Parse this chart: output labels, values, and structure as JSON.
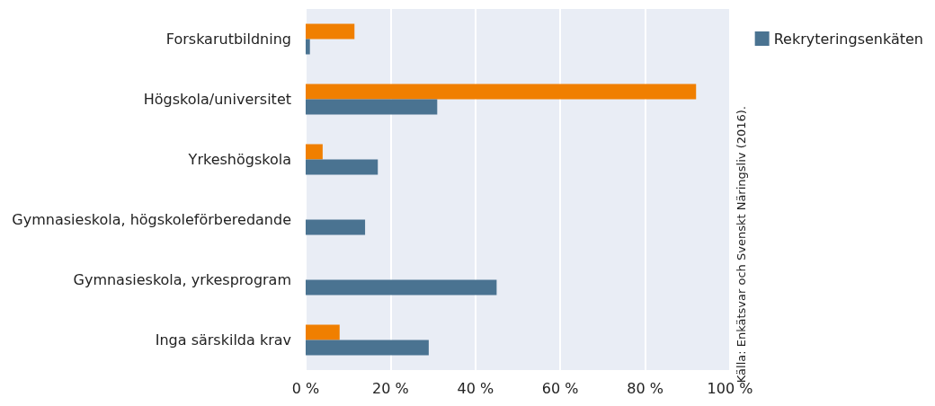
{
  "chart_data": {
    "type": "bar",
    "orientation": "horizontal",
    "categories": [
      "Forskarutbildning",
      "Högskola/universitet",
      "Yrkeshögskola",
      "Gymnasieskola, högskoleförberedande",
      "Gymnasieskola, yrkesprogram",
      "Inga särskilda krav"
    ],
    "series": [
      {
        "color": "#f07f00",
        "values": [
          11.5,
          92,
          4,
          null,
          null,
          8
        ]
      },
      {
        "name": "Rekryteringsenkäten",
        "color": "#4a7391",
        "values": [
          1,
          31,
          17,
          14,
          45,
          29
        ]
      }
    ],
    "xlim": [
      0,
      100
    ],
    "xticks": [
      {
        "value": 0,
        "label": "0 %"
      },
      {
        "value": 20,
        "label": "20 %"
      },
      {
        "value": 40,
        "label": "40 %"
      },
      {
        "value": 60,
        "label": "60 %"
      },
      {
        "value": 80,
        "label": "80 %"
      },
      {
        "value": 100,
        "label": "100 %"
      }
    ],
    "grid": "x",
    "legend": "top right",
    "annotations": [
      "Källa: Enkätsvar och Svenskt Näringsliv (2016)."
    ]
  }
}
